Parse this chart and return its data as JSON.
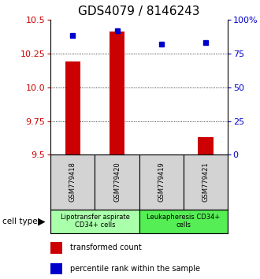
{
  "title": "GDS4079 / 8146243",
  "samples": [
    "GSM779418",
    "GSM779420",
    "GSM779419",
    "GSM779421"
  ],
  "transformed_counts": [
    10.19,
    10.41,
    9.505,
    9.63
  ],
  "percentile_ranks": [
    88,
    92,
    82,
    83
  ],
  "y_min": 9.5,
  "y_max": 10.5,
  "y_ticks_left": [
    9.5,
    9.75,
    10.0,
    10.25,
    10.5
  ],
  "y_ticks_right": [
    0,
    25,
    50,
    75,
    100
  ],
  "bar_color": "#cc0000",
  "dot_color": "#0000cc",
  "cell_type_groups": [
    {
      "label": "Lipotransfer aspirate\nCD34+ cells",
      "samples": [
        0,
        1
      ],
      "color": "#aaffaa"
    },
    {
      "label": "Leukapheresis CD34+\ncells",
      "samples": [
        2,
        3
      ],
      "color": "#55ee55"
    }
  ],
  "sample_box_color": "#d3d3d3",
  "cell_type_label": "cell type",
  "legend_bar_label": "transformed count",
  "legend_dot_label": "percentile rank within the sample",
  "bar_axis_color": "#cc0000",
  "pct_axis_color": "#0000cc",
  "title_fontsize": 11,
  "tick_fontsize": 8,
  "sample_fontsize": 6,
  "legend_fontsize": 7,
  "group_fontsize": 6,
  "bar_width": 0.35
}
